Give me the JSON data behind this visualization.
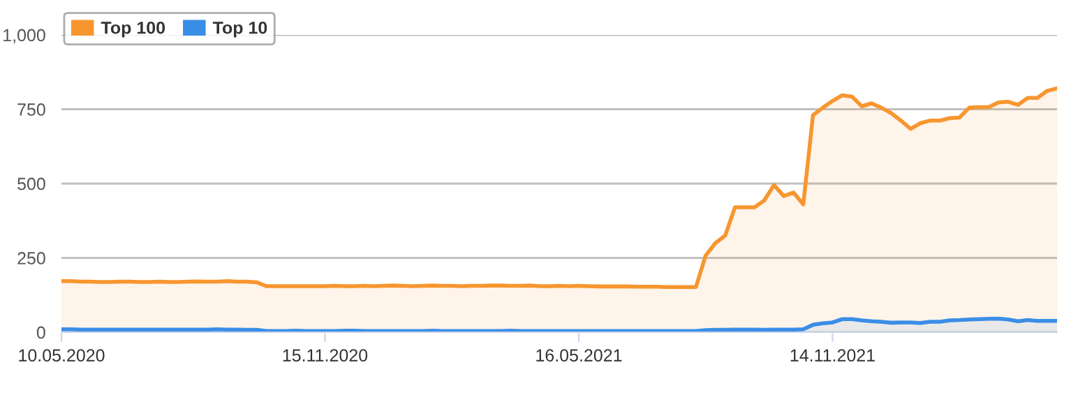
{
  "chart_data": {
    "type": "area",
    "x": [
      "2020-05-10",
      "2020-05-17",
      "2020-05-24",
      "2020-05-31",
      "2020-06-07",
      "2020-06-14",
      "2020-06-21",
      "2020-06-28",
      "2020-07-05",
      "2020-07-12",
      "2020-07-19",
      "2020-07-26",
      "2020-08-02",
      "2020-08-09",
      "2020-08-16",
      "2020-08-23",
      "2020-08-30",
      "2020-09-06",
      "2020-09-13",
      "2020-09-20",
      "2020-09-27",
      "2020-10-04",
      "2020-10-11",
      "2020-10-18",
      "2020-10-25",
      "2020-11-01",
      "2020-11-08",
      "2020-11-15",
      "2020-11-22",
      "2020-11-29",
      "2020-12-06",
      "2020-12-13",
      "2020-12-20",
      "2020-12-27",
      "2021-01-03",
      "2021-01-10",
      "2021-01-17",
      "2021-01-24",
      "2021-01-31",
      "2021-02-07",
      "2021-02-14",
      "2021-02-21",
      "2021-02-28",
      "2021-03-07",
      "2021-03-14",
      "2021-03-21",
      "2021-03-28",
      "2021-04-04",
      "2021-04-11",
      "2021-04-18",
      "2021-04-25",
      "2021-05-02",
      "2021-05-09",
      "2021-05-16",
      "2021-05-23",
      "2021-05-30",
      "2021-06-06",
      "2021-06-13",
      "2021-06-20",
      "2021-06-27",
      "2021-07-04",
      "2021-07-11",
      "2021-07-18",
      "2021-07-25",
      "2021-08-01",
      "2021-08-08",
      "2021-08-15",
      "2021-08-22",
      "2021-08-29",
      "2021-09-05",
      "2021-09-12",
      "2021-09-19",
      "2021-09-26",
      "2021-10-03",
      "2021-10-10",
      "2021-10-17",
      "2021-10-24",
      "2021-10-31",
      "2021-11-07",
      "2021-11-14",
      "2021-11-21",
      "2021-11-28",
      "2021-12-05",
      "2021-12-12",
      "2021-12-19",
      "2021-12-26",
      "2022-01-02",
      "2022-01-09",
      "2022-01-16",
      "2022-01-23",
      "2022-01-30",
      "2022-02-06",
      "2022-02-13",
      "2022-02-20",
      "2022-02-27",
      "2022-03-06",
      "2022-03-13",
      "2022-03-20",
      "2022-03-27",
      "2022-04-03",
      "2022-04-10",
      "2022-04-17",
      "2022-04-24"
    ],
    "series": [
      {
        "name": "Top 100",
        "color": "#f7962f",
        "values": [
          172,
          172,
          170,
          170,
          169,
          169,
          170,
          170,
          169,
          169,
          170,
          169,
          169,
          170,
          171,
          170,
          170,
          172,
          170,
          170,
          168,
          155,
          155,
          155,
          155,
          155,
          155,
          155,
          156,
          155,
          155,
          156,
          155,
          156,
          157,
          156,
          155,
          156,
          157,
          156,
          156,
          155,
          156,
          156,
          157,
          157,
          156,
          156,
          157,
          155,
          155,
          156,
          155,
          156,
          155,
          154,
          154,
          154,
          154,
          153,
          153,
          153,
          152,
          152,
          152,
          152,
          258,
          300,
          325,
          420,
          420,
          420,
          443,
          495,
          458,
          470,
          430,
          730,
          755,
          778,
          797,
          792,
          760,
          770,
          755,
          737,
          712,
          684,
          703,
          712,
          712,
          720,
          722,
          755,
          757,
          757,
          773,
          775,
          765,
          788,
          788,
          812,
          820
        ]
      },
      {
        "name": "Top 10",
        "color": "#3a8ee6",
        "values": [
          10,
          10,
          9,
          9,
          9,
          9,
          9,
          9,
          9,
          9,
          9,
          9,
          9,
          9,
          9,
          9,
          10,
          9,
          9,
          8,
          8,
          4,
          4,
          4,
          5,
          4,
          4,
          4,
          4,
          5,
          5,
          4,
          4,
          4,
          4,
          4,
          4,
          4,
          5,
          4,
          4,
          4,
          4,
          4,
          4,
          4,
          5,
          4,
          4,
          4,
          4,
          4,
          4,
          4,
          4,
          4,
          4,
          4,
          4,
          4,
          4,
          4,
          4,
          4,
          4,
          4,
          7,
          8,
          8,
          9,
          9,
          9,
          8,
          9,
          9,
          9,
          10,
          25,
          30,
          33,
          44,
          44,
          40,
          37,
          35,
          32,
          33,
          33,
          31,
          35,
          35,
          40,
          41,
          43,
          44,
          45,
          46,
          43,
          37,
          41,
          38,
          38,
          38
        ]
      }
    ],
    "xlim": [
      "2020-05-10",
      "2022-04-24"
    ],
    "xticks": [
      {
        "value": "2020-05-10",
        "label": "10.05.2020"
      },
      {
        "value": "2020-11-15",
        "label": "15.11.2020"
      },
      {
        "value": "2021-05-16",
        "label": "16.05.2021"
      },
      {
        "value": "2021-11-14",
        "label": "14.11.2021"
      }
    ],
    "ylim": [
      0,
      1000
    ],
    "yticks": [
      0,
      250,
      500,
      750,
      {
        "value": 1000,
        "label": "1,000"
      }
    ],
    "grid": "y",
    "legend": "top left"
  }
}
